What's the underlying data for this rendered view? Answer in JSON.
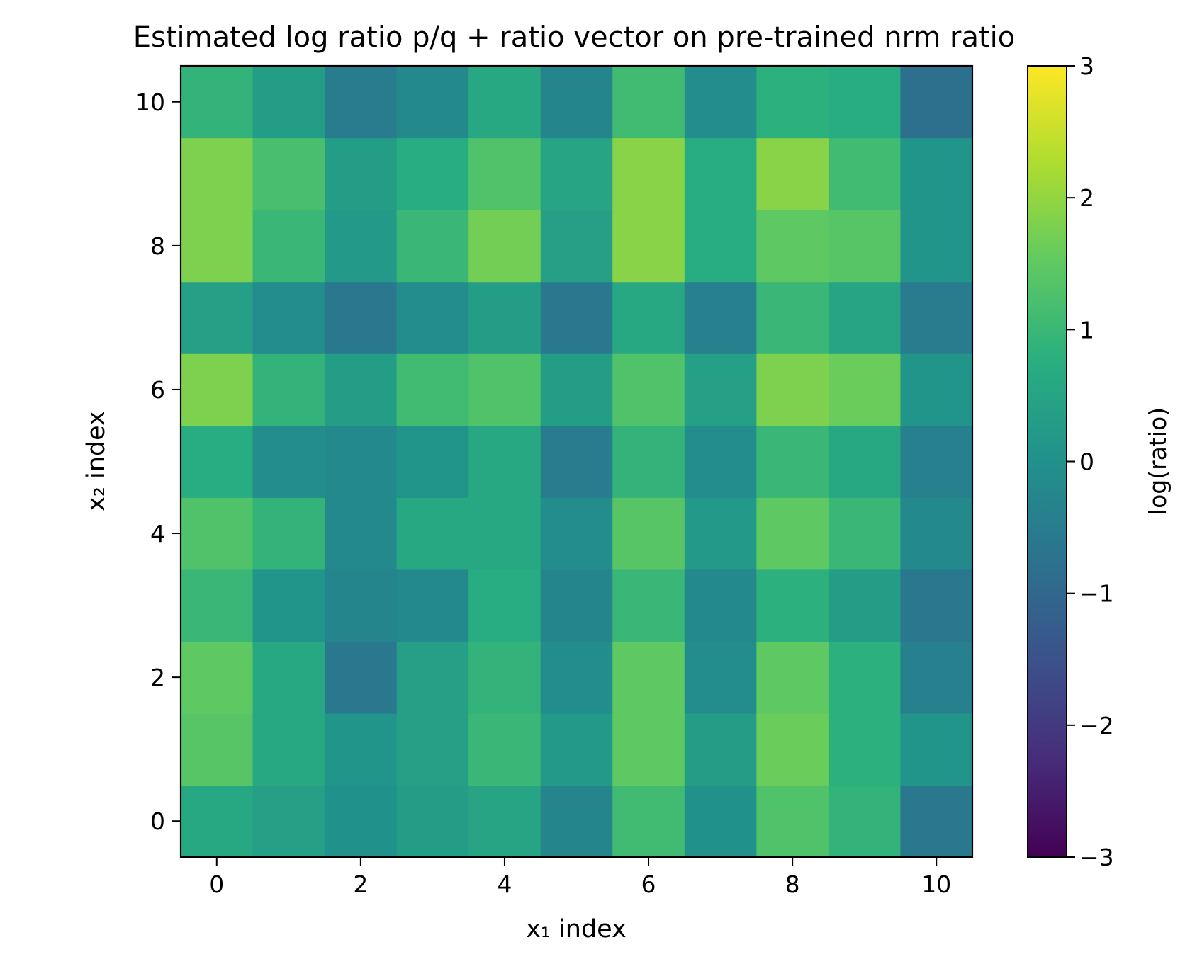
{
  "chart_data": {
    "type": "heatmap",
    "title": "Estimated log ratio p/q + ratio vector on pre-trained nrm ratio",
    "xlabel": "x₁ index",
    "ylabel": "x₂ index",
    "colorbar_label": "log(ratio)",
    "colormap": "viridis",
    "x": [
      0,
      1,
      2,
      3,
      4,
      5,
      6,
      7,
      8,
      9,
      10
    ],
    "y": [
      0,
      1,
      2,
      3,
      4,
      5,
      6,
      7,
      8,
      9,
      10
    ],
    "xlim": [
      -0.5,
      10.5
    ],
    "ylim": [
      -0.5,
      10.5
    ],
    "clim": [
      -3,
      3
    ],
    "x_ticks": [
      "0",
      "2",
      "4",
      "6",
      "8",
      "10"
    ],
    "y_ticks": [
      "0",
      "2",
      "4",
      "6",
      "8",
      "10"
    ],
    "colorbar_ticks": [
      "−3",
      "−2",
      "−1",
      "0",
      "1",
      "2",
      "3"
    ],
    "grid": false,
    "values": [
      [
        0.6,
        0.4,
        0.0,
        0.3,
        0.5,
        -0.3,
        1.1,
        0.0,
        1.3,
        0.9,
        -0.6
      ],
      [
        1.4,
        0.6,
        0.1,
        0.4,
        1.0,
        0.2,
        1.5,
        0.3,
        1.6,
        0.8,
        0.1
      ],
      [
        1.5,
        0.6,
        -0.6,
        0.4,
        0.9,
        -0.1,
        1.5,
        -0.1,
        1.5,
        0.8,
        -0.4
      ],
      [
        1.0,
        0.1,
        -0.3,
        -0.2,
        0.7,
        -0.3,
        1.0,
        -0.2,
        0.8,
        0.3,
        -0.6
      ],
      [
        1.3,
        0.9,
        -0.2,
        0.6,
        0.6,
        -0.1,
        1.4,
        0.2,
        1.5,
        1.0,
        -0.2
      ],
      [
        0.7,
        -0.1,
        -0.2,
        0.1,
        0.6,
        -0.5,
        0.9,
        -0.1,
        1.0,
        0.6,
        -0.4
      ],
      [
        1.8,
        0.9,
        0.3,
        1.1,
        1.3,
        0.3,
        1.3,
        0.4,
        1.8,
        1.6,
        0.1
      ],
      [
        0.4,
        -0.1,
        -0.6,
        -0.1,
        0.3,
        -0.6,
        0.6,
        -0.4,
        1.0,
        0.5,
        -0.5
      ],
      [
        1.8,
        1.0,
        0.2,
        1.0,
        1.7,
        0.4,
        1.9,
        0.7,
        1.5,
        1.4,
        0.1
      ],
      [
        1.8,
        1.2,
        0.3,
        0.7,
        1.3,
        0.5,
        1.9,
        0.7,
        1.9,
        1.1,
        0.1
      ],
      [
        0.9,
        0.3,
        -0.5,
        -0.2,
        0.6,
        -0.3,
        1.1,
        -0.1,
        0.8,
        0.7,
        -0.8
      ]
    ]
  }
}
